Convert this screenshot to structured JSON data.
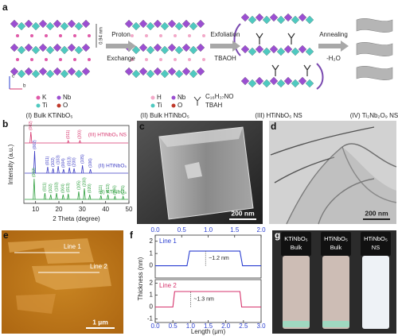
{
  "panel_labels": [
    "a",
    "b",
    "c",
    "d",
    "e",
    "f",
    "g"
  ],
  "a": {
    "spacing": "0.94 nm",
    "axes": [
      "c",
      "b"
    ],
    "steps": [
      {
        "line1": "Proton",
        "line2": "Exchange"
      },
      {
        "line1": "Exfoliation",
        "line2": "TBAOH"
      },
      {
        "line1": "Annealing",
        "line2": "-H₂O"
      }
    ],
    "legend_1": [
      "K",
      "Nb",
      "Ti",
      "O"
    ],
    "legend_2": [
      "H",
      "Nb",
      "Ti",
      "O"
    ],
    "molecule": [
      "C₁₆H₃₇NO",
      "TBAH"
    ],
    "captions": [
      "(I) Bulk KTiNbO₅",
      "(II) Bulk HTiNbO₅",
      "(III) HTiNbO₅ NS",
      "(IV) Ti₂Nb₂O₉ NS"
    ]
  },
  "b": {
    "xlabel": "2 Theta (degree)",
    "ylabel": "Intensity (a.u.)",
    "xlim": [
      5,
      50
    ],
    "xticks": [
      10,
      20,
      30,
      40,
      50
    ],
    "series": [
      {
        "name": "(III) HTiNbO₅ NS",
        "color": "#d6336c",
        "peaks": [
          8,
          24,
          29
        ],
        "intensities": [
          14,
          3,
          3
        ],
        "peak_labels": [
          "(002)",
          "(011)",
          "(200)"
        ]
      },
      {
        "name": "(II) HTiNbO₅",
        "color": "#3b3bc4",
        "peaks": [
          9.6,
          15.2,
          17.5,
          19.7,
          22,
          24.5,
          26.5,
          30.1,
          33.5
        ],
        "intensities": [
          28,
          8,
          6,
          9,
          5,
          7,
          6,
          10,
          5
        ],
        "peak_labels": [
          "(002)",
          "(011)",
          "(102)",
          "(103)",
          "(004)",
          "(013)",
          "(200)",
          "(105)",
          "(106)"
        ]
      },
      {
        "name": "(I) KTiNbO₅",
        "color": "#2a9d3a",
        "peaks": [
          9.4,
          14,
          16.5,
          19,
          21.8,
          24,
          28.5,
          30.9,
          33.2,
          38,
          41,
          44,
          47.5
        ],
        "intensities": [
          26,
          8,
          6,
          8,
          6,
          7,
          10,
          14,
          6,
          5,
          6,
          4,
          4
        ],
        "peak_labels": [
          "(002)",
          "(011)",
          "(102)",
          "(103)",
          "(004)",
          "(013)",
          "(105)",
          "(200)",
          "(020)",
          "(211)",
          "(213)",
          "(206)",
          "(125)"
        ]
      }
    ]
  },
  "c": {
    "scale_bar": "200 nm"
  },
  "d": {
    "scale_bar": "200 nm"
  },
  "e": {
    "lines": [
      "Line 1",
      "Line 2"
    ],
    "scale_bar": "1 µm"
  },
  "f": {
    "xlabel": "Length (μm)",
    "ylabel": "Thickness (nm)",
    "panels": [
      {
        "name": "Line 1",
        "color": "#2b3fd1",
        "annotation": "~1.2 nm",
        "xlim": [
          0,
          2
        ],
        "ylim": [
          -1,
          2.5
        ],
        "xticks": [
          {
            "value": 0,
            "label": "0.0"
          },
          {
            "value": 0.5,
            "label": "0.5"
          },
          {
            "value": 1,
            "label": "1.0"
          },
          {
            "value": 1.5,
            "label": "1.5"
          },
          {
            "value": 2,
            "label": "2.0"
          }
        ],
        "yticks": [
          2,
          1,
          0
        ],
        "x": [
          0,
          0.6,
          0.65,
          1.6,
          1.65,
          2
        ],
        "y": [
          0,
          0,
          1.2,
          1.2,
          0,
          0
        ]
      },
      {
        "name": "Line 2",
        "color": "#d6336c",
        "annotation": "~1.3 nm",
        "xlim": [
          0,
          3
        ],
        "ylim": [
          -1.3,
          2.3
        ],
        "xticks": [
          {
            "value": 0,
            "label": "0.0"
          },
          {
            "value": 0.5,
            "label": "0.5"
          },
          {
            "value": 1,
            "label": "1.0"
          },
          {
            "value": 1.5,
            "label": "1.5"
          },
          {
            "value": 2,
            "label": "2.0"
          },
          {
            "value": 2.5,
            "label": "2.5"
          },
          {
            "value": 3,
            "label": "3.0"
          }
        ],
        "yticks": [
          2,
          1,
          0,
          -1
        ],
        "x": [
          0,
          0.5,
          0.55,
          2.4,
          2.45,
          3
        ],
        "y": [
          0,
          0,
          1.3,
          1.3,
          0,
          0
        ]
      }
    ]
  },
  "g": {
    "vials": [
      [
        "KTiNbO₅",
        "Bulk"
      ],
      [
        "HTiNbO₅",
        "Bulk"
      ],
      [
        "HTiNbO₅",
        "NS"
      ]
    ]
  }
}
